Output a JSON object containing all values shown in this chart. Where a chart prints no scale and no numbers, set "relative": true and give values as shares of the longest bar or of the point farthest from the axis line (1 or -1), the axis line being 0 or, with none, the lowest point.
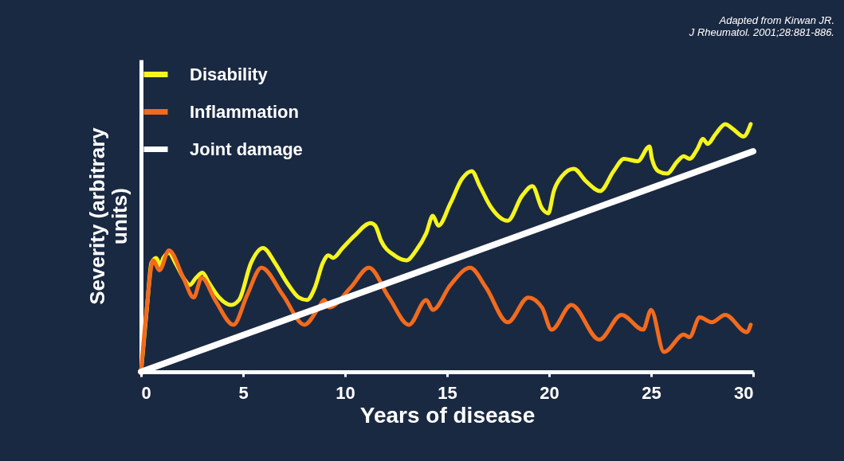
{
  "chart_data": {
    "type": "line",
    "relative": true,
    "xlabel": "Years of disease",
    "ylabel": "Severity (arbitrary units)",
    "annotations": [
      "Adapted from Kirwan JR.",
      "J Rheumatol.  2001;28:881-886."
    ],
    "xlim": [
      0,
      30
    ],
    "xticks": [
      0,
      5,
      10,
      15,
      20,
      25,
      30
    ],
    "grid": false,
    "legend": "top left",
    "line_style": "solid",
    "marker": "none",
    "series": [
      {
        "name": "Disability",
        "color": "#f5f51e",
        "x": [
          0,
          0.31,
          0.51,
          0.74,
          0.94,
          1.09,
          1.37,
          1.68,
          2.15,
          2.38,
          2.7,
          3.01,
          3.32,
          3.83,
          4.41,
          4.8,
          5.39,
          5.98,
          6.56,
          7.15,
          7.73,
          8.13,
          8.52,
          8.91,
          9.18,
          9.41,
          9.88,
          10.47,
          11.25,
          11.48,
          11.76,
          12.42,
          13.01,
          13.48,
          13.98,
          14.3,
          14.57,
          15.16,
          15.74,
          16.21,
          16.6,
          17.11,
          17.97,
          18.67,
          19.18,
          19.65,
          19.96,
          20.23,
          20.63,
          21.21,
          21.8,
          22.5,
          23.16,
          23.67,
          24.34,
          24.92,
          25.04,
          25.35,
          25.78,
          26.29,
          26.6,
          26.88,
          27.27,
          27.54,
          27.77,
          28.16,
          28.63,
          29.02,
          29.53,
          29.88
        ],
        "values": [
          0,
          0.28,
          0.44,
          0.46,
          0.43,
          0.46,
          0.48,
          0.44,
          0.37,
          0.35,
          0.38,
          0.4,
          0.36,
          0.3,
          0.27,
          0.29,
          0.44,
          0.5,
          0.44,
          0.36,
          0.3,
          0.29,
          0.34,
          0.44,
          0.47,
          0.46,
          0.5,
          0.55,
          0.6,
          0.59,
          0.53,
          0.47,
          0.45,
          0.49,
          0.56,
          0.63,
          0.59,
          0.68,
          0.78,
          0.81,
          0.75,
          0.67,
          0.61,
          0.71,
          0.75,
          0.66,
          0.64,
          0.73,
          0.79,
          0.82,
          0.77,
          0.73,
          0.81,
          0.86,
          0.85,
          0.91,
          0.86,
          0.81,
          0.8,
          0.85,
          0.87,
          0.86,
          0.9,
          0.94,
          0.92,
          0.96,
          1,
          0.98,
          0.95,
          1
        ]
      },
      {
        "name": "Inflammation",
        "color": "#f26b1d",
        "x": [
          0,
          0.27,
          0.59,
          0.9,
          1.37,
          2.07,
          2.58,
          2.97,
          3.63,
          4.53,
          5.2,
          5.9,
          6.95,
          8.01,
          8.71,
          8.98,
          9.22,
          10.27,
          11.17,
          12.15,
          13.13,
          13.98,
          14.3,
          15.16,
          16.13,
          16.91,
          17.97,
          18.98,
          19.65,
          20.12,
          21.09,
          22.46,
          23.55,
          24.61,
          25,
          25.63,
          26.6,
          26.88,
          27.38,
          27.97,
          28.63,
          29.69,
          29.88
        ],
        "values": [
          0,
          0.25,
          0.45,
          0.41,
          0.49,
          0.38,
          0.3,
          0.38,
          0.29,
          0.19,
          0.31,
          0.42,
          0.31,
          0.19,
          0.26,
          0.29,
          0.26,
          0.34,
          0.42,
          0.3,
          0.19,
          0.29,
          0.25,
          0.35,
          0.42,
          0.34,
          0.2,
          0.3,
          0.26,
          0.17,
          0.27,
          0.13,
          0.23,
          0.17,
          0.25,
          0.08,
          0.15,
          0.14,
          0.22,
          0.2,
          0.23,
          0.16,
          0.19
        ]
      },
      {
        "name": "Joint damage",
        "color": "#ffffff",
        "x": [
          0,
          30
        ],
        "values": [
          0,
          0.89
        ]
      }
    ]
  }
}
